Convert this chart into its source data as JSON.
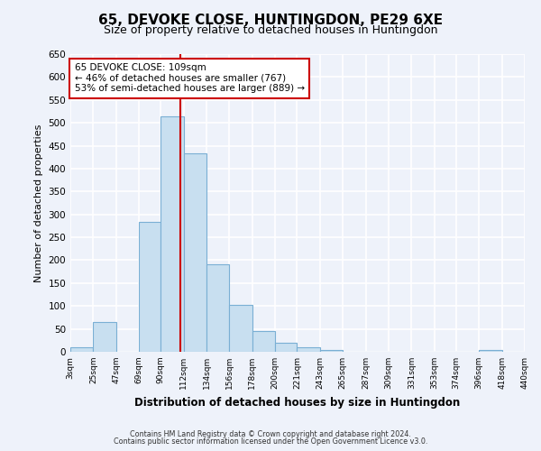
{
  "title": "65, DEVOKE CLOSE, HUNTINGDON, PE29 6XE",
  "subtitle": "Size of property relative to detached houses in Huntingdon",
  "xlabel": "Distribution of detached houses by size in Huntingdon",
  "ylabel": "Number of detached properties",
  "footnote1": "Contains HM Land Registry data © Crown copyright and database right 2024.",
  "footnote2": "Contains public sector information licensed under the Open Government Licence v3.0.",
  "bin_edges": [
    3,
    25,
    47,
    69,
    90,
    112,
    134,
    156,
    178,
    200,
    221,
    243,
    265,
    287,
    309,
    331,
    353,
    374,
    396,
    418,
    440
  ],
  "bin_labels": [
    "3sqm",
    "25sqm",
    "47sqm",
    "69sqm",
    "90sqm",
    "112sqm",
    "134sqm",
    "156sqm",
    "178sqm",
    "200sqm",
    "221sqm",
    "243sqm",
    "265sqm",
    "287sqm",
    "309sqm",
    "331sqm",
    "353sqm",
    "374sqm",
    "396sqm",
    "418sqm",
    "440sqm"
  ],
  "counts": [
    10,
    65,
    0,
    283,
    515,
    433,
    192,
    103,
    46,
    19,
    10,
    3,
    0,
    0,
    0,
    0,
    0,
    0,
    3,
    0
  ],
  "bar_color": "#c8dff0",
  "bar_edge_color": "#7aafd4",
  "vline_x": 109,
  "vline_color": "#cc0000",
  "annotation_title": "65 DEVOKE CLOSE: 109sqm",
  "annotation_line1": "← 46% of detached houses are smaller (767)",
  "annotation_line2": "53% of semi-detached houses are larger (889) →",
  "annotation_box_color": "#ffffff",
  "annotation_box_edge": "#cc0000",
  "ylim": [
    0,
    650
  ],
  "bg_color": "#eef2fa",
  "plot_bg_color": "#eef2fa",
  "grid_color": "#ffffff",
  "title_fontsize": 11,
  "subtitle_fontsize": 9
}
